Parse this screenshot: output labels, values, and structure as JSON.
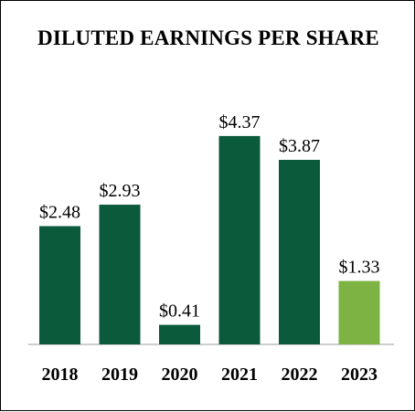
{
  "chart_data": {
    "type": "bar",
    "title": "DILUTED EARNINGS PER SHARE",
    "categories": [
      "2018",
      "2019",
      "2020",
      "2021",
      "2022",
      "2023"
    ],
    "values": [
      2.48,
      2.93,
      0.41,
      4.37,
      3.87,
      1.33
    ],
    "data_labels": [
      "$2.48",
      "$2.93",
      "$0.41",
      "$4.37",
      "$3.87",
      "$1.33"
    ],
    "xlabel": "",
    "ylabel": "",
    "ylim": [
      0,
      5
    ],
    "grid": false,
    "legend": "none",
    "colors": {
      "default_bar": "#0b5a3c",
      "highlight_bar": "#7cb342",
      "axis": "#bdbdbd"
    },
    "highlight_index": 5
  }
}
